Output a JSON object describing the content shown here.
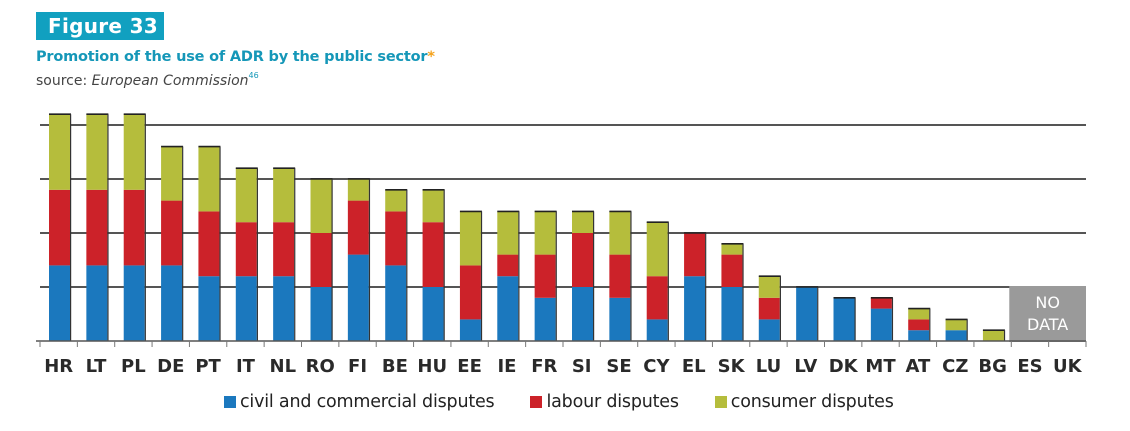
{
  "figure": {
    "badge": "Figure 33",
    "title": "Promotion of the use of ADR by the public sector",
    "title_marker": "*",
    "source_prefix": "source: ",
    "source_name": "European Commission",
    "source_note": "46"
  },
  "colors": {
    "civil": "#1b78be",
    "labour": "#cc2229",
    "consumer": "#b5bd3c",
    "no_data": "#9a9a9a",
    "badge": "#11a0c0"
  },
  "chart_data": {
    "type": "bar",
    "stacked": true,
    "title": "Promotion of the use of ADR by the public sector",
    "xlabel": "",
    "ylabel": "",
    "ylim": [
      0,
      21
    ],
    "y_gridlines": [
      5,
      10,
      15,
      20
    ],
    "y_tick_labels_shown": false,
    "grid": true,
    "legend_position": "bottom",
    "categories": [
      "HR",
      "LT",
      "PL",
      "DE",
      "PT",
      "IT",
      "NL",
      "RO",
      "FI",
      "BE",
      "HU",
      "EE",
      "IE",
      "FR",
      "SI",
      "SE",
      "CY",
      "EL",
      "SK",
      "LU",
      "LV",
      "DK",
      "MT",
      "AT",
      "CZ",
      "BG",
      "ES",
      "UK"
    ],
    "series": [
      {
        "name": "civil and commercial disputes",
        "color_key": "civil",
        "values": [
          7,
          7,
          7,
          7,
          6,
          6,
          6,
          5,
          8,
          7,
          5,
          2,
          6,
          4,
          5,
          4,
          2,
          6,
          5,
          2,
          5,
          4,
          3,
          1,
          1,
          0,
          null,
          null
        ]
      },
      {
        "name": "labour disputes",
        "color_key": "labour",
        "values": [
          7,
          7,
          7,
          6,
          6,
          5,
          5,
          5,
          5,
          5,
          6,
          5,
          2,
          4,
          5,
          4,
          4,
          4,
          3,
          2,
          0,
          0,
          1,
          1,
          0,
          0,
          null,
          null
        ]
      },
      {
        "name": "consumer disputes",
        "color_key": "consumer",
        "values": [
          7,
          7,
          7,
          5,
          6,
          5,
          5,
          5,
          2,
          2,
          3,
          5,
          4,
          4,
          2,
          4,
          5,
          0,
          1,
          2,
          0,
          0,
          0,
          1,
          1,
          1,
          null,
          null
        ]
      }
    ],
    "no_data": {
      "categories": [
        "ES",
        "UK"
      ],
      "label_line1": "NO",
      "label_line2": "DATA"
    }
  }
}
